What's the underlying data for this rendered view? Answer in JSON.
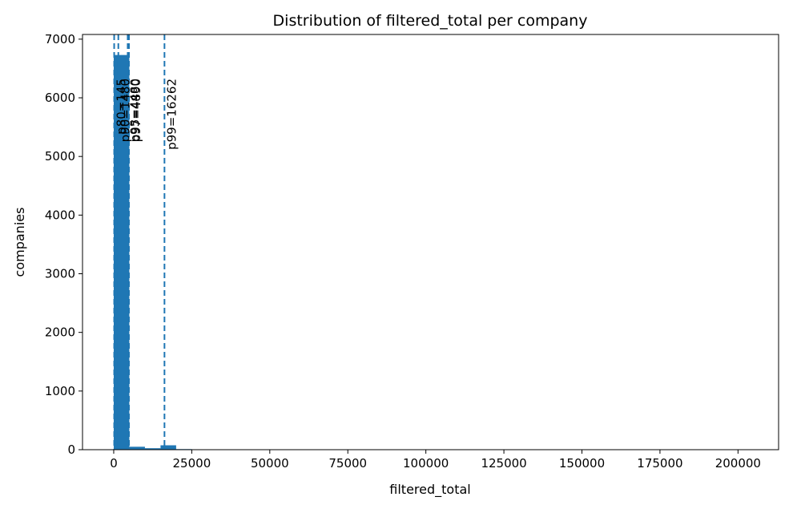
{
  "chart_data": {
    "type": "bar",
    "title": "Distribution of filtered_total per company",
    "xlabel": "filtered_total",
    "ylabel": "companies",
    "xlim": [
      -10000,
      213000
    ],
    "ylim": [
      0,
      7080
    ],
    "xticks": [
      0,
      25000,
      50000,
      75000,
      100000,
      125000,
      150000,
      175000,
      200000
    ],
    "yticks": [
      0,
      1000,
      2000,
      3000,
      4000,
      5000,
      6000,
      7000
    ],
    "grid": false,
    "bar_color": "#1f77b4",
    "bins": [
      {
        "x0": 0,
        "x1": 5000,
        "value": 6730
      },
      {
        "x0": 5000,
        "x1": 10000,
        "value": 50
      },
      {
        "x0": 10000,
        "x1": 15000,
        "value": 25
      },
      {
        "x0": 15000,
        "x1": 20000,
        "value": 75
      },
      {
        "x0": 20000,
        "x1": 25000,
        "value": 10
      },
      {
        "x0": 25000,
        "x1": 30000,
        "value": 5
      },
      {
        "x0": 30000,
        "x1": 35000,
        "value": 3
      },
      {
        "x0": 35000,
        "x1": 40000,
        "value": 2
      }
    ],
    "percentile_lines": [
      {
        "label": "p80=145",
        "x": 145
      },
      {
        "label": "p90=1480",
        "x": 1480
      },
      {
        "label": "p95=4480",
        "x": 4480
      },
      {
        "label": "p97=4890",
        "x": 4890
      },
      {
        "label": "p99=16262",
        "x": 16262
      }
    ]
  }
}
